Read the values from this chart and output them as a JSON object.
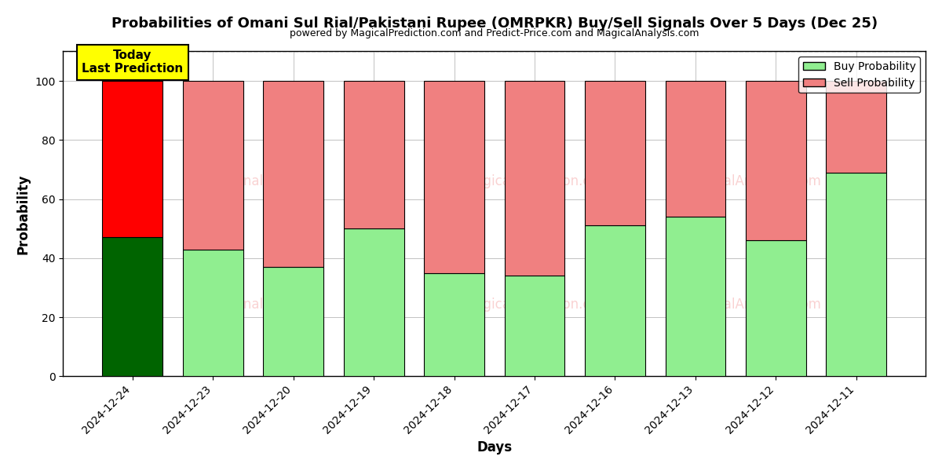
{
  "title": "Probabilities of Omani Sul Rial/Pakistani Rupee (OMRPKR) Buy/Sell Signals Over 5 Days (Dec 25)",
  "subtitle": "powered by MagicalPrediction.com and Predict-Price.com and MagicalAnalysis.com",
  "xlabel": "Days",
  "ylabel": "Probability",
  "categories": [
    "2024-12-24",
    "2024-12-23",
    "2024-12-20",
    "2024-12-19",
    "2024-12-18",
    "2024-12-17",
    "2024-12-16",
    "2024-12-13",
    "2024-12-12",
    "2024-12-11"
  ],
  "buy_values": [
    47,
    43,
    37,
    50,
    35,
    34,
    51,
    54,
    46,
    69
  ],
  "sell_values": [
    53,
    57,
    63,
    50,
    65,
    66,
    49,
    46,
    54,
    31
  ],
  "today_bar_buy_color": "#006400",
  "today_bar_sell_color": "#ff0000",
  "buy_color": "#90EE90",
  "sell_color": "#F08080",
  "today_annotation_bg": "#ffff00",
  "today_annotation_text": "Today\nLast Prediction",
  "legend_buy_label": "Buy Probability",
  "legend_sell_label": "Sell Probability",
  "ylim": [
    0,
    110
  ],
  "yticks": [
    0,
    20,
    40,
    60,
    80,
    100
  ],
  "dashed_line_y": 110,
  "background_color": "#ffffff",
  "grid_color": "#aaaaaa"
}
